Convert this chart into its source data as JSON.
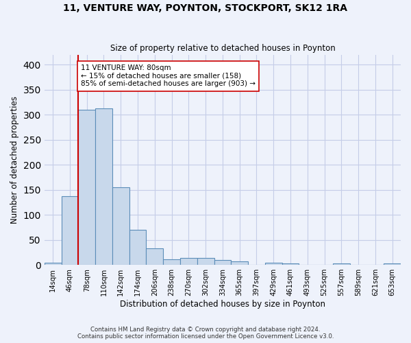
{
  "title1": "11, VENTURE WAY, POYNTON, STOCKPORT, SK12 1RA",
  "title2": "Size of property relative to detached houses in Poynton",
  "xlabel": "Distribution of detached houses by size in Poynton",
  "ylabel": "Number of detached properties",
  "bin_labels": [
    "14sqm",
    "46sqm",
    "78sqm",
    "110sqm",
    "142sqm",
    "174sqm",
    "206sqm",
    "238sqm",
    "270sqm",
    "302sqm",
    "334sqm",
    "365sqm",
    "397sqm",
    "429sqm",
    "461sqm",
    "493sqm",
    "525sqm",
    "557sqm",
    "589sqm",
    "621sqm",
    "653sqm"
  ],
  "bar_values": [
    5,
    137,
    310,
    313,
    155,
    70,
    33,
    11,
    14,
    14,
    10,
    7,
    0,
    4,
    3,
    0,
    0,
    3,
    0,
    0,
    3
  ],
  "bar_color": "#c8d8eb",
  "bar_edge_color": "#5b8db8",
  "red_line_color": "#cc0000",
  "annotation_text": "11 VENTURE WAY: 80sqm\n← 15% of detached houses are smaller (158)\n85% of semi-detached houses are larger (903) →",
  "footer1": "Contains HM Land Registry data © Crown copyright and database right 2024.",
  "footer2": "Contains public sector information licensed under the Open Government Licence v3.0.",
  "bg_color": "#eef2fb",
  "ylim": [
    0,
    420
  ],
  "yticks": [
    0,
    50,
    100,
    150,
    200,
    250,
    300,
    350,
    400
  ],
  "grid_color": "#c5cde8",
  "red_line_bin_index": 2,
  "bar_width": 1.0
}
